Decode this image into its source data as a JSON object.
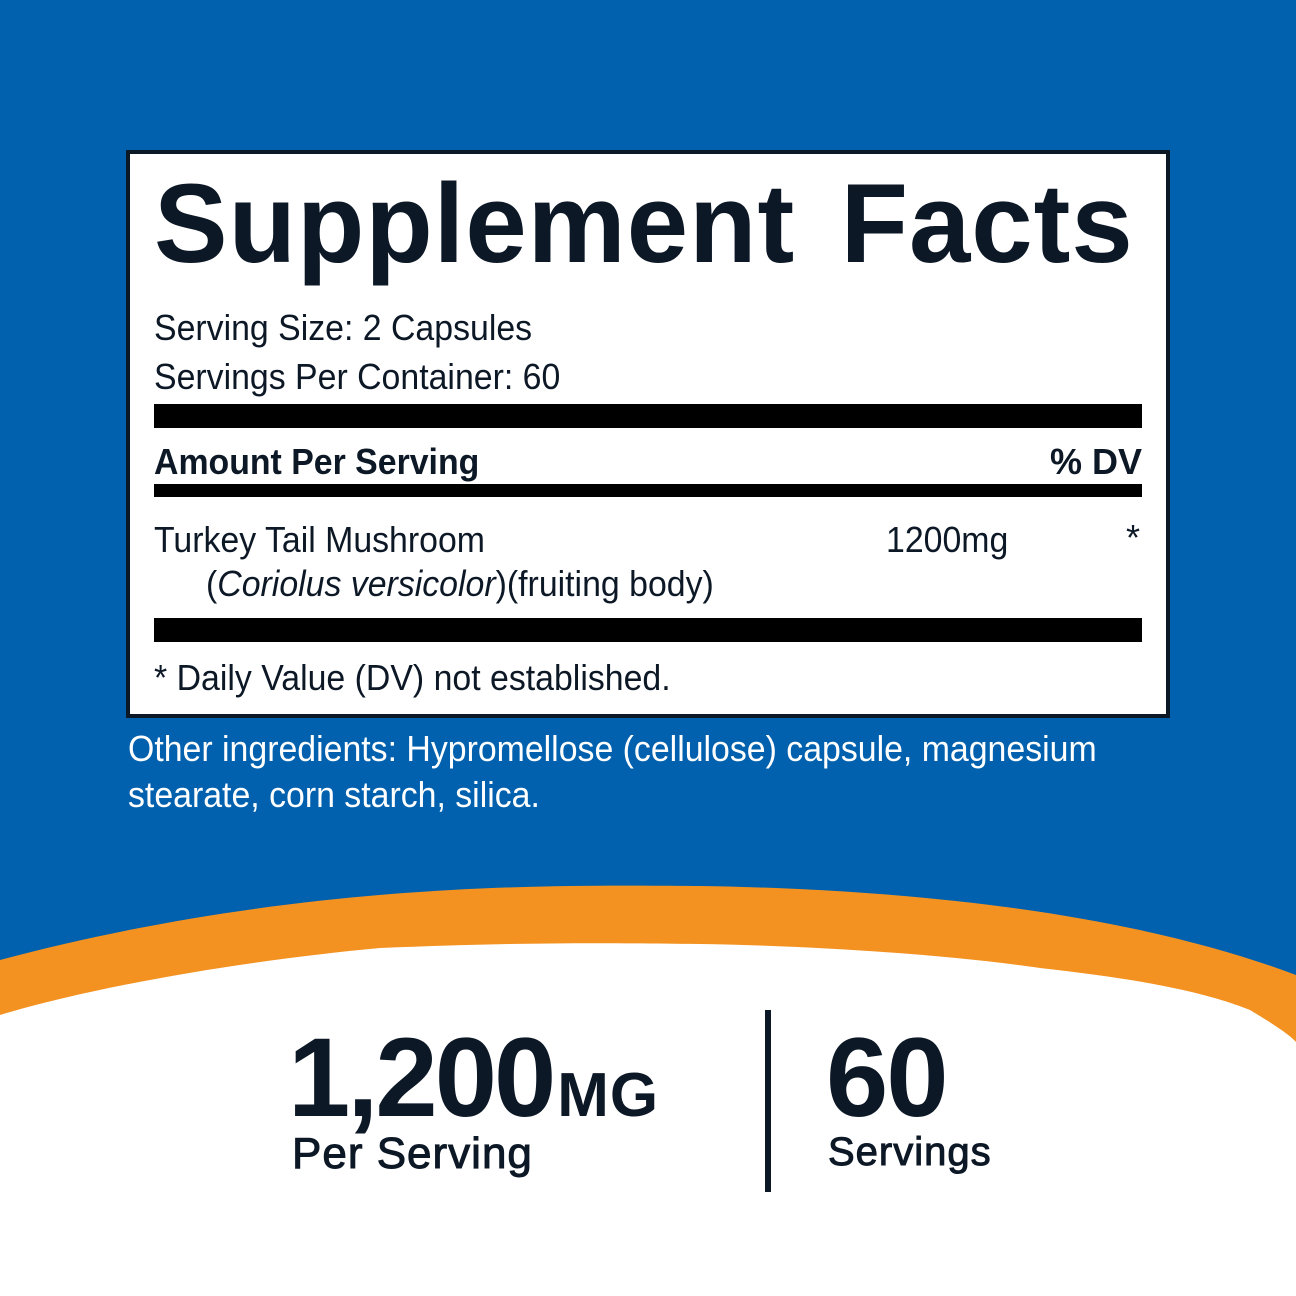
{
  "colors": {
    "background_blue": "#0161ae",
    "accent_orange": "#f39221",
    "text_dark": "#0d1826",
    "white": "#ffffff"
  },
  "facts": {
    "title": "Supplement Facts",
    "serving_size": "Serving Size: 2 Capsules",
    "servings_per_container": "Servings Per Container: 60",
    "amount_header": "Amount Per Serving",
    "dv_header": "% DV",
    "ingredient": {
      "name": "Turkey Tail Mushroom",
      "latin_open": "(",
      "latin": "Coriolus versicolor",
      "latin_close": ")(fruiting body)",
      "amount": "1200mg",
      "dv": "*"
    },
    "footnote": "* Daily Value (DV) not established."
  },
  "other_ingredients": "Other ingredients: Hypromellose (cellulose) capsule, magnesium stearate, corn starch, silica.",
  "highlights": {
    "dose_value": "1,200",
    "dose_unit": "MG",
    "dose_label": "Per Serving",
    "servings_value": "60",
    "servings_label": "Servings"
  }
}
